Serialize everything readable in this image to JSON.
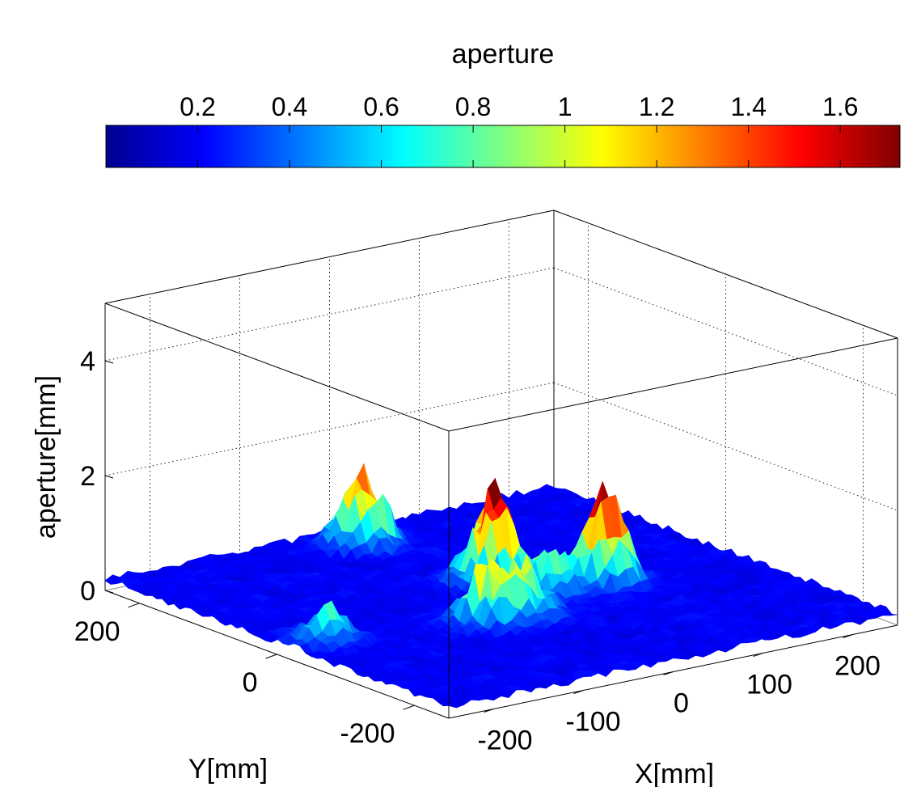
{
  "chart_data": {
    "type": "surface",
    "colorbar": {
      "title": "aperture",
      "ticks": [
        "0.2",
        "0.4",
        "0.6",
        "0.8",
        "1",
        "1.2",
        "1.4",
        "1.6"
      ],
      "tick_values": [
        0.2,
        0.4,
        0.6,
        0.8,
        1.0,
        1.2,
        1.4,
        1.6
      ],
      "range": [
        0,
        1.73
      ],
      "colormap": "jet",
      "placement": "top"
    },
    "xlabel": "X[mm]",
    "ylabel": "Y[mm]",
    "zlabel": "aperture[mm]",
    "x_ticks": [
      "-200",
      "-100",
      "0",
      "100",
      "200"
    ],
    "x_tick_values": [
      -200,
      -100,
      0,
      100,
      200
    ],
    "y_ticks": [
      "200",
      "0",
      "-200"
    ],
    "y_tick_values": [
      200,
      0,
      -200
    ],
    "z_ticks": [
      "0",
      "2",
      "4"
    ],
    "z_tick_values": [
      0,
      2,
      4
    ],
    "xlim": [
      -250,
      250
    ],
    "ylim": [
      -250,
      250
    ],
    "zlim": [
      0,
      5
    ],
    "grid": true,
    "surface_baseline_mm": 0.2,
    "peaks": [
      {
        "x": 0,
        "y": 200,
        "z": 1.45
      },
      {
        "x": 20,
        "y": 40,
        "z": 1.75
      },
      {
        "x": 100,
        "y": -20,
        "z": 1.55
      },
      {
        "x": -60,
        "y": -60,
        "z": 1.15
      },
      {
        "x": -20,
        "y": -60,
        "z": 0.95
      },
      {
        "x": 40,
        "y": -20,
        "z": 0.85
      },
      {
        "x": -210,
        "y": -20,
        "z": 0.75
      }
    ]
  }
}
